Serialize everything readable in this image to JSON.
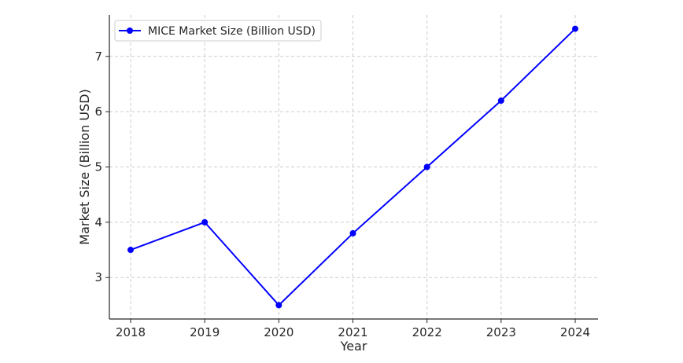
{
  "chart_data": {
    "type": "line",
    "title": "",
    "xlabel": "Year",
    "ylabel": "Market Size (Billion USD)",
    "x": [
      "2018",
      "2019",
      "2020",
      "2021",
      "2022",
      "2023",
      "2024"
    ],
    "series": [
      {
        "name": "MICE Market Size (Billion USD)",
        "values": [
          3.5,
          4.0,
          2.5,
          3.8,
          5.0,
          6.2,
          7.5
        ],
        "color": "#0000ff"
      }
    ],
    "yticks": [
      "3",
      "4",
      "5",
      "6",
      "7"
    ],
    "ylim": [
      2.25,
      7.75
    ],
    "grid": true,
    "grid_style": "dashed",
    "legend": "top-left"
  }
}
